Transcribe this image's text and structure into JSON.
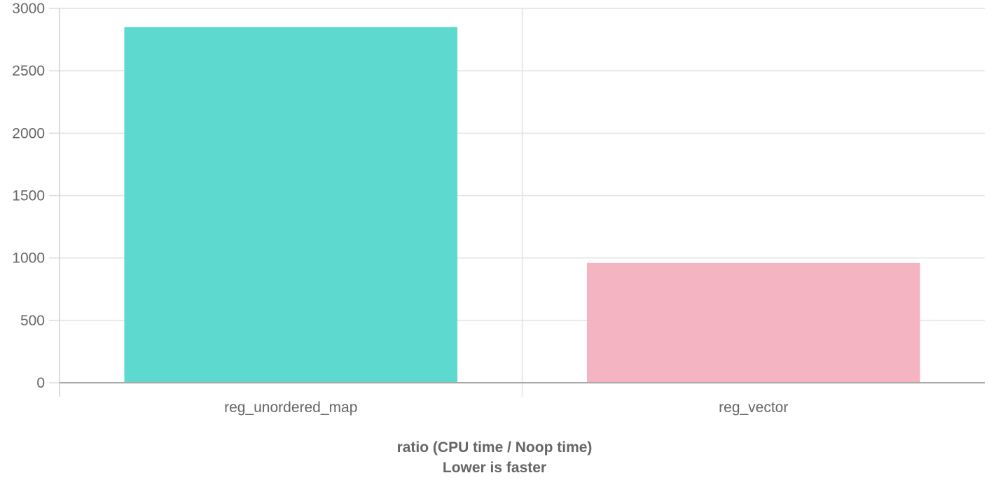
{
  "chart_data": {
    "type": "bar",
    "categories": [
      "reg_unordered_map",
      "reg_vector"
    ],
    "values": [
      2850,
      960
    ],
    "bar_colors": [
      "#5dd9cf",
      "#f5b4c2"
    ],
    "xlabel_lines": [
      "ratio (CPU time / Noop time)",
      "Lower is faster"
    ],
    "ylim": [
      0,
      3000
    ],
    "yticks": [
      0,
      500,
      1000,
      1500,
      2000,
      2500,
      3000
    ],
    "grid": true,
    "legend": "none"
  }
}
